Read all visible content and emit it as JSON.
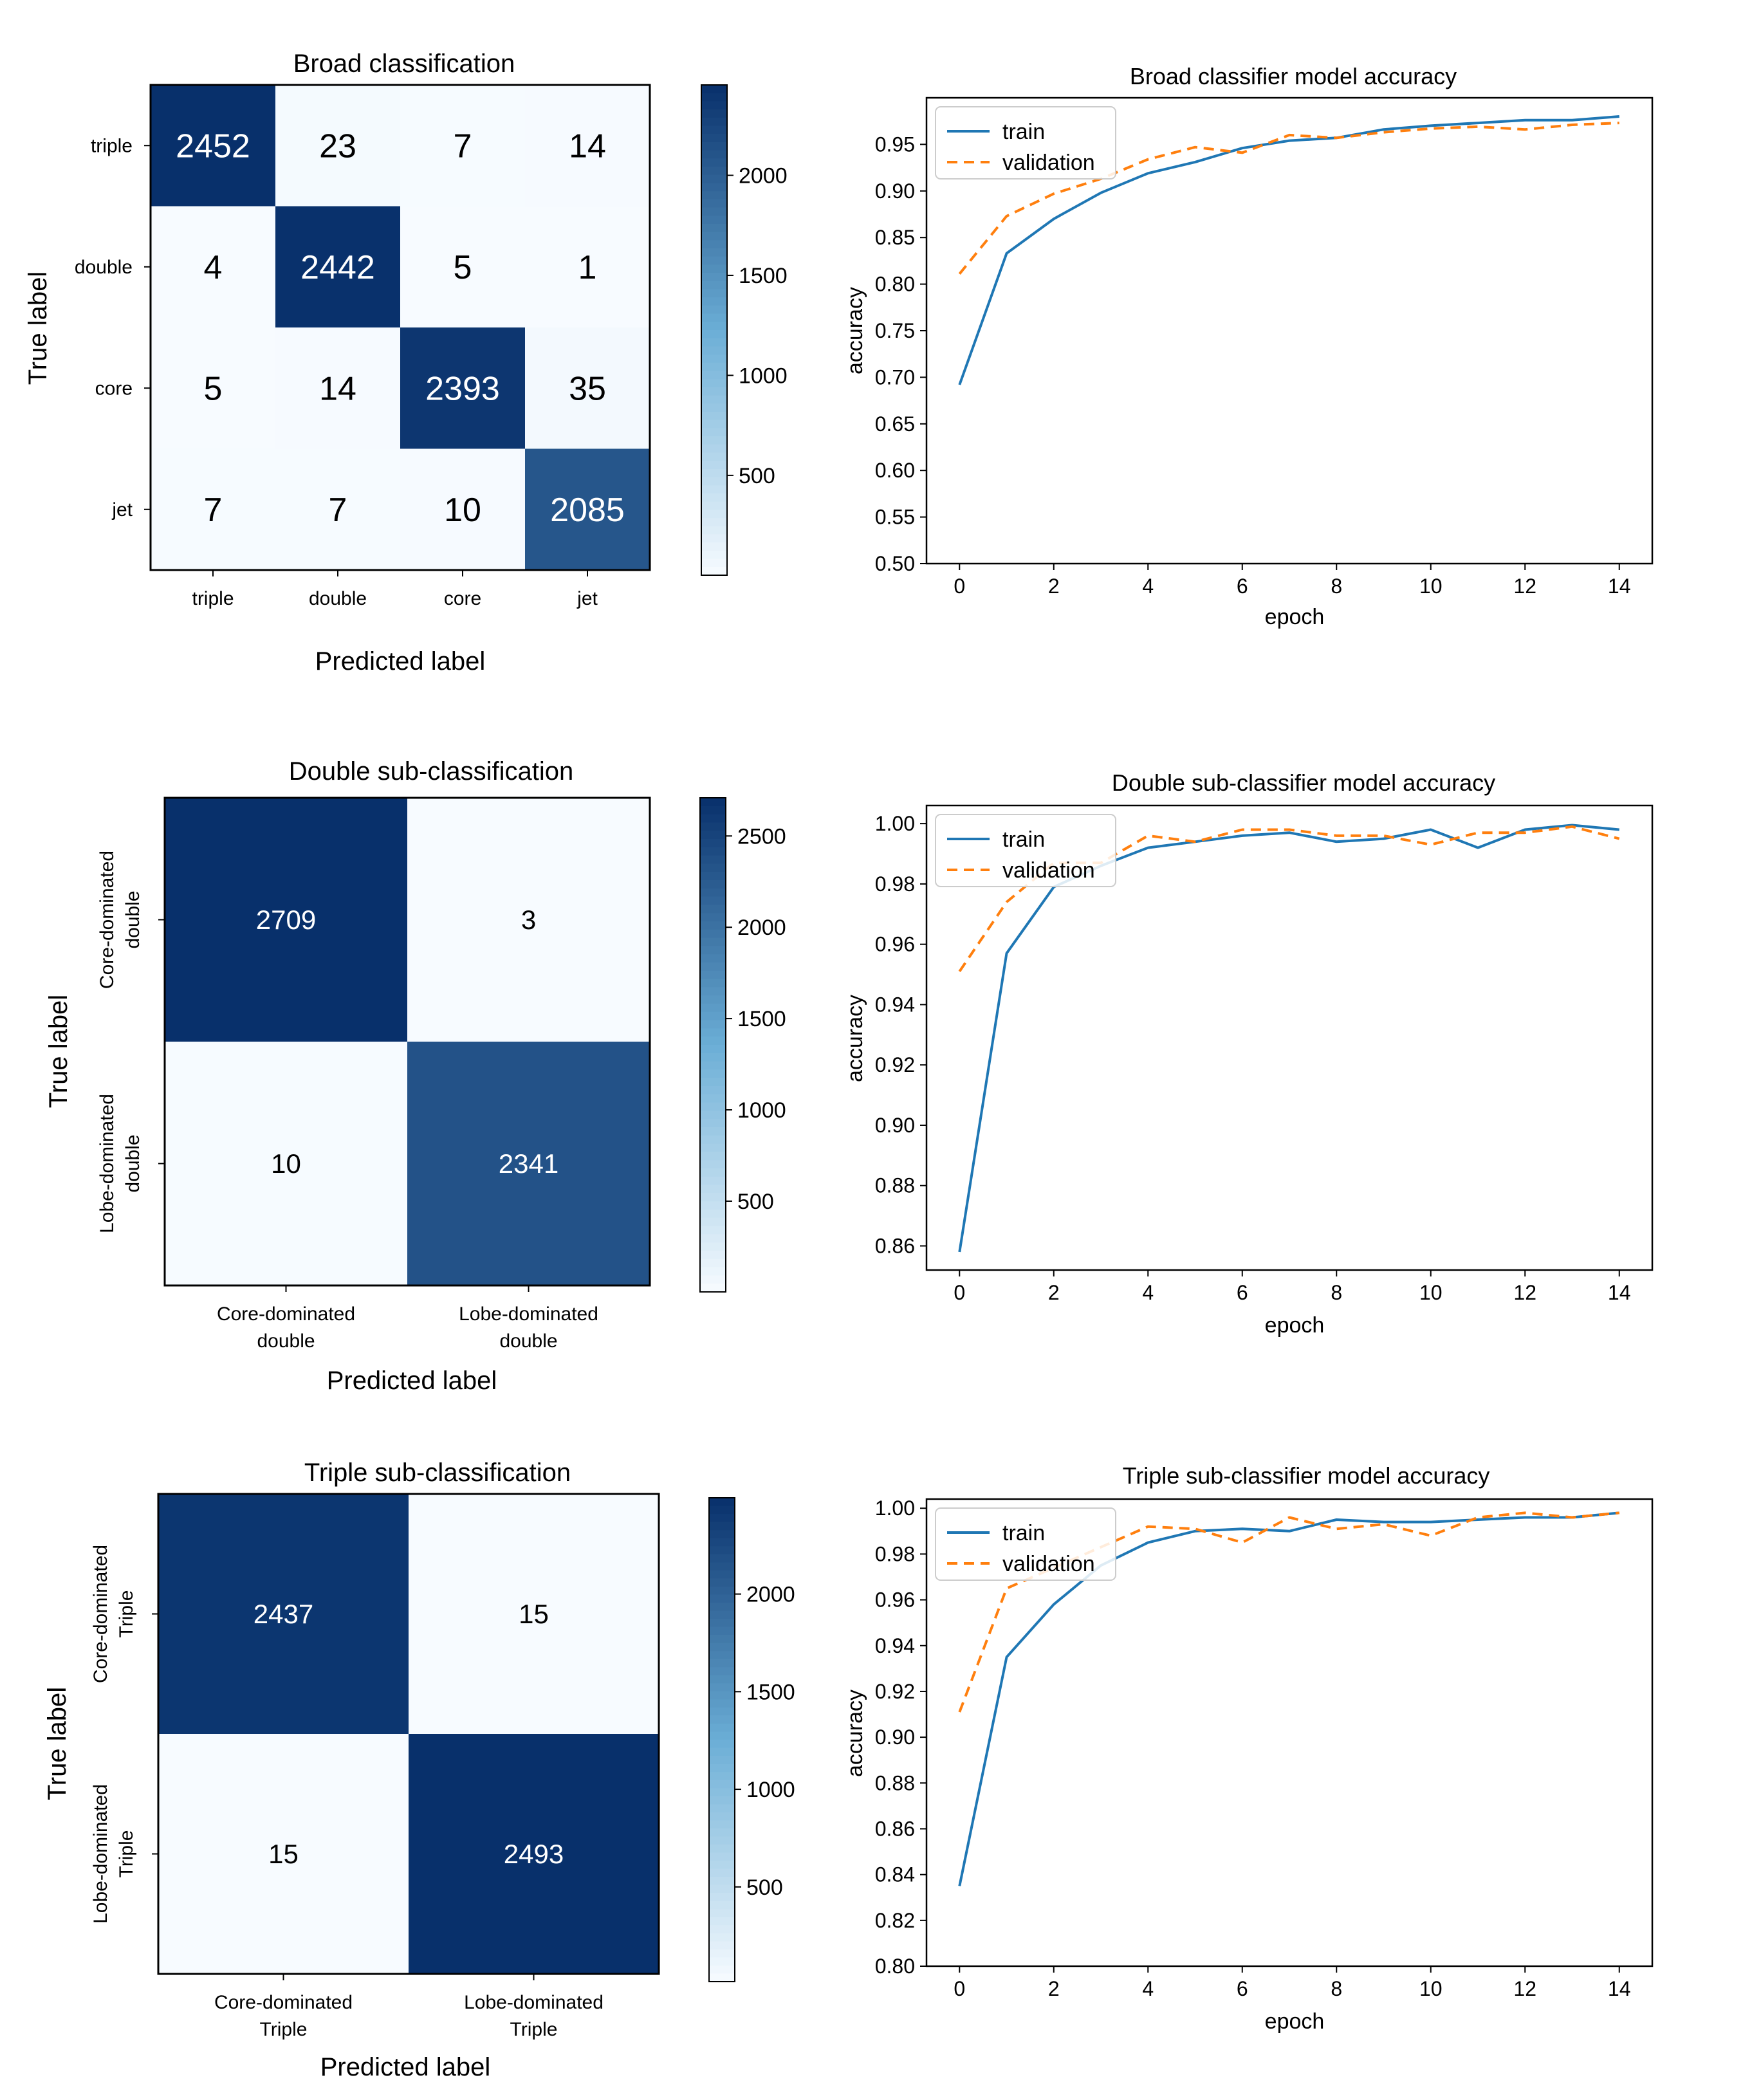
{
  "colors": {
    "train": "#1f77b4",
    "validation": "#ff7f0e",
    "cmap_low": "#f7fbff",
    "cmap_mid": "#6baed6",
    "cmap_high": "#08306b",
    "axis": "#000000",
    "text_dark_cell": "#ffffff",
    "text_light_cell": "#000000"
  },
  "chart_data": [
    {
      "id": "cm1",
      "type": "heatmap",
      "title": "Broad classification",
      "xlabel": "Predicted label",
      "ylabel": "True label",
      "x_ticks": [
        "triple",
        "double",
        "core",
        "jet"
      ],
      "y_ticks": [
        "triple",
        "double",
        "core",
        "jet"
      ],
      "matrix": [
        [
          2452,
          23,
          7,
          14
        ],
        [
          4,
          2442,
          5,
          1
        ],
        [
          5,
          14,
          2393,
          35
        ],
        [
          7,
          7,
          10,
          2085
        ]
      ],
      "vmin": 1,
      "vmax": 2452,
      "colorbar_ticks": [
        "500",
        "1000",
        "1500",
        "2000"
      ],
      "colorbar_values": [
        500,
        1000,
        1500,
        2000
      ]
    },
    {
      "id": "acc1",
      "type": "line",
      "title": "Broad classifier model accuracy",
      "xlabel": "epoch",
      "ylabel": "accuracy",
      "xlim": [
        -0.7,
        14.7
      ],
      "ylim": [
        0.5,
        1.0
      ],
      "x_ticks": [
        "0",
        "2",
        "4",
        "6",
        "8",
        "10",
        "12",
        "14"
      ],
      "x_tick_values": [
        0,
        2,
        4,
        6,
        8,
        10,
        12,
        14
      ],
      "y_ticks": [
        "0.50",
        "0.55",
        "0.60",
        "0.65",
        "0.70",
        "0.75",
        "0.80",
        "0.85",
        "0.90",
        "0.95"
      ],
      "y_tick_values": [
        0.5,
        0.55,
        0.6,
        0.65,
        0.7,
        0.75,
        0.8,
        0.85,
        0.9,
        0.95
      ],
      "legend": "upper left",
      "series": [
        {
          "name": "train",
          "x": [
            0,
            1,
            2,
            3,
            4,
            5,
            6,
            7,
            8,
            9,
            10,
            11,
            12,
            13,
            14
          ],
          "values": [
            0.692,
            0.833,
            0.87,
            0.898,
            0.919,
            0.931,
            0.946,
            0.954,
            0.957,
            0.966,
            0.97,
            0.973,
            0.976,
            0.976,
            0.98
          ]
        },
        {
          "name": "validation",
          "x": [
            0,
            1,
            2,
            3,
            4,
            5,
            6,
            7,
            8,
            9,
            10,
            11,
            12,
            13,
            14
          ],
          "values": [
            0.811,
            0.873,
            0.897,
            0.913,
            0.934,
            0.947,
            0.941,
            0.96,
            0.957,
            0.963,
            0.967,
            0.969,
            0.966,
            0.971,
            0.973
          ]
        }
      ]
    },
    {
      "id": "cm2",
      "type": "heatmap",
      "title": "Double sub-classification",
      "xlabel": "Predicted label",
      "ylabel": "True label",
      "x_ticks": [
        "Core-dominated\ndouble",
        "Lobe-dominated\ndouble"
      ],
      "y_ticks": [
        "Core-dominated\ndouble",
        "Lobe-dominated\ndouble"
      ],
      "matrix": [
        [
          2709,
          3
        ],
        [
          10,
          2341
        ]
      ],
      "vmin": 3,
      "vmax": 2709,
      "colorbar_ticks": [
        "500",
        "1000",
        "1500",
        "2000",
        "2500"
      ],
      "colorbar_values": [
        500,
        1000,
        1500,
        2000,
        2500
      ]
    },
    {
      "id": "acc2",
      "type": "line",
      "title": "Double sub-classifier model accuracy",
      "xlabel": "epoch",
      "ylabel": "accuracy",
      "xlim": [
        -0.7,
        14.7
      ],
      "ylim": [
        0.852,
        1.006
      ],
      "x_ticks": [
        "0",
        "2",
        "4",
        "6",
        "8",
        "10",
        "12",
        "14"
      ],
      "x_tick_values": [
        0,
        2,
        4,
        6,
        8,
        10,
        12,
        14
      ],
      "y_ticks": [
        "0.86",
        "0.88",
        "0.90",
        "0.92",
        "0.94",
        "0.96",
        "0.98",
        "1.00"
      ],
      "y_tick_values": [
        0.86,
        0.88,
        0.9,
        0.92,
        0.94,
        0.96,
        0.98,
        1.0
      ],
      "legend": "upper left",
      "series": [
        {
          "name": "train",
          "x": [
            0,
            1,
            2,
            3,
            4,
            5,
            6,
            7,
            8,
            9,
            10,
            11,
            12,
            13,
            14
          ],
          "values": [
            0.858,
            0.957,
            0.979,
            0.986,
            0.992,
            0.994,
            0.996,
            0.997,
            0.994,
            0.995,
            0.998,
            0.992,
            0.998,
            0.9995,
            0.998
          ]
        },
        {
          "name": "validation",
          "x": [
            0,
            1,
            2,
            3,
            4,
            5,
            6,
            7,
            8,
            9,
            10,
            11,
            12,
            13,
            14
          ],
          "values": [
            0.951,
            0.974,
            0.987,
            0.987,
            0.996,
            0.994,
            0.998,
            0.998,
            0.996,
            0.996,
            0.993,
            0.997,
            0.997,
            0.999,
            0.995
          ]
        }
      ]
    },
    {
      "id": "cm3",
      "type": "heatmap",
      "title": "Triple sub-classification",
      "xlabel": "Predicted label",
      "ylabel": "True label",
      "x_ticks": [
        "Core-dominated\nTriple",
        "Lobe-dominated\nTriple"
      ],
      "y_ticks": [
        "Core-dominated\nTriple",
        "Lobe-dominated\nTriple"
      ],
      "matrix": [
        [
          2437,
          15
        ],
        [
          15,
          2493
        ]
      ],
      "vmin": 15,
      "vmax": 2493,
      "colorbar_ticks": [
        "500",
        "1000",
        "1500",
        "2000"
      ],
      "colorbar_values": [
        500,
        1000,
        1500,
        2000
      ]
    },
    {
      "id": "acc3",
      "type": "line",
      "title": "Triple sub-classifier model accuracy",
      "xlabel": "epoch",
      "ylabel": "accuracy",
      "xlim": [
        -0.7,
        14.7
      ],
      "ylim": [
        0.8,
        1.004
      ],
      "x_ticks": [
        "0",
        "2",
        "4",
        "6",
        "8",
        "10",
        "12",
        "14"
      ],
      "x_tick_values": [
        0,
        2,
        4,
        6,
        8,
        10,
        12,
        14
      ],
      "y_ticks": [
        "0.80",
        "0.82",
        "0.84",
        "0.86",
        "0.88",
        "0.90",
        "0.92",
        "0.94",
        "0.96",
        "0.98",
        "1.00"
      ],
      "y_tick_values": [
        0.8,
        0.82,
        0.84,
        0.86,
        0.88,
        0.9,
        0.92,
        0.94,
        0.96,
        0.98,
        1.0
      ],
      "legend": "upper left",
      "series": [
        {
          "name": "train",
          "x": [
            0,
            1,
            2,
            3,
            4,
            5,
            6,
            7,
            8,
            9,
            10,
            11,
            12,
            13,
            14
          ],
          "values": [
            0.835,
            0.935,
            0.958,
            0.975,
            0.985,
            0.99,
            0.991,
            0.99,
            0.995,
            0.994,
            0.994,
            0.995,
            0.996,
            0.996,
            0.998
          ]
        },
        {
          "name": "validation",
          "x": [
            0,
            1,
            2,
            3,
            4,
            5,
            6,
            7,
            8,
            9,
            10,
            11,
            12,
            13,
            14
          ],
          "values": [
            0.911,
            0.965,
            0.974,
            0.983,
            0.992,
            0.991,
            0.985,
            0.996,
            0.991,
            0.993,
            0.988,
            0.996,
            0.998,
            0.996,
            0.998
          ]
        }
      ]
    }
  ]
}
